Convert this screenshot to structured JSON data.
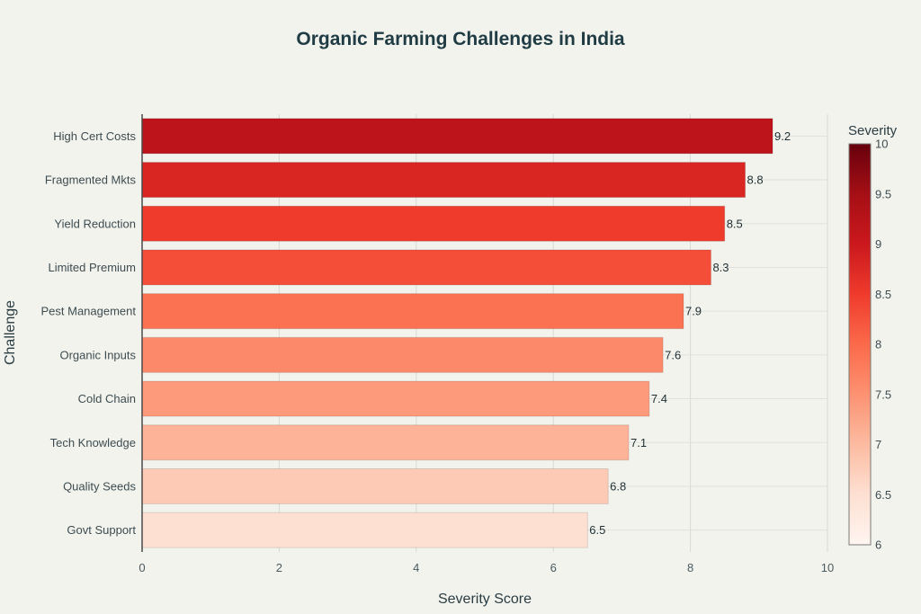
{
  "chart_data": {
    "type": "bar",
    "orientation": "horizontal",
    "title": "Organic Farming Challenges in India",
    "xlabel": "Severity Score",
    "ylabel": "Challenge",
    "xlim": [
      0,
      10
    ],
    "x_ticks": [
      0,
      2,
      4,
      6,
      8,
      10
    ],
    "grid": true,
    "categories": [
      "High Cert Costs",
      "Fragmented Mkts",
      "Yield Reduction",
      "Limited Premium",
      "Pest Management",
      "Organic Inputs",
      "Cold Chain",
      "Tech Knowledge",
      "Quality Seeds",
      "Govt Support"
    ],
    "values": [
      9.2,
      8.8,
      8.5,
      8.3,
      7.9,
      7.6,
      7.4,
      7.1,
      6.8,
      6.5
    ],
    "data_labels": [
      "9.2",
      "8.8",
      "8.5",
      "8.3",
      "7.9",
      "7.6",
      "7.4",
      "7.1",
      "6.8",
      "6.5"
    ],
    "colorbar": {
      "title": "Severity",
      "range": [
        6,
        10
      ],
      "ticks": [
        6,
        6.5,
        7,
        7.5,
        8,
        8.5,
        9,
        9.5,
        10
      ],
      "tick_labels": [
        "6",
        "6.5",
        "7",
        "7.5",
        "8",
        "8.5",
        "9",
        "9.5",
        "10"
      ],
      "placement": "right",
      "colorscale": [
        "#fff5f0",
        "#fee0d2",
        "#fcbba1",
        "#fc9272",
        "#fb6a4a",
        "#ef3b2c",
        "#cb181d",
        "#a50f15",
        "#67000d"
      ]
    }
  }
}
